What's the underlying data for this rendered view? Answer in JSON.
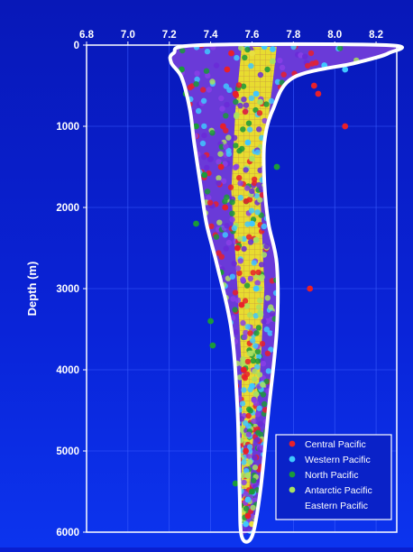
{
  "chart_data": {
    "type": "scatter",
    "title": "",
    "xlabel": "",
    "ylabel": "Depth (m)",
    "xlim": [
      6.8,
      8.3
    ],
    "ylim": [
      6000,
      0
    ],
    "x_ticks": [
      "6.8",
      "7.0",
      "7.2",
      "7.4",
      "7.6",
      "7.8",
      "8.0",
      "8.2"
    ],
    "y_ticks": [
      "0",
      "1000",
      "2000",
      "3000",
      "4000",
      "5000",
      "6000"
    ],
    "y_axis_inverted": true,
    "x_axis_position": "top",
    "legend_position": "bottom-right",
    "envelope": {
      "left_edge": [
        [
          7.35,
          0
        ],
        [
          7.22,
          100
        ],
        [
          7.21,
          220
        ],
        [
          7.26,
          400
        ],
        [
          7.3,
          800
        ],
        [
          7.32,
          1200
        ],
        [
          7.35,
          1700
        ],
        [
          7.38,
          2200
        ],
        [
          7.43,
          2700
        ],
        [
          7.5,
          3500
        ],
        [
          7.53,
          4500
        ],
        [
          7.54,
          5500
        ],
        [
          7.55,
          6050
        ]
      ],
      "right_edge": [
        [
          8.25,
          0
        ],
        [
          8.26,
          100
        ],
        [
          8.1,
          220
        ],
        [
          7.8,
          400
        ],
        [
          7.7,
          800
        ],
        [
          7.66,
          1200
        ],
        [
          7.66,
          1700
        ],
        [
          7.68,
          2200
        ],
        [
          7.72,
          2700
        ],
        [
          7.72,
          3500
        ],
        [
          7.68,
          4500
        ],
        [
          7.64,
          5500
        ],
        [
          7.6,
          6050
        ]
      ]
    },
    "series": [
      {
        "name": "Central Pacific",
        "color": "#e8202a",
        "points": [
          [
            7.9,
            500
          ],
          [
            7.92,
            600
          ],
          [
            8.05,
            1000
          ],
          [
            7.88,
            3000
          ],
          [
            7.5,
            100
          ],
          [
            7.48,
            300
          ],
          [
            7.52,
            600
          ],
          [
            7.46,
            1000
          ],
          [
            7.45,
            1500
          ],
          [
            7.47,
            2000
          ],
          [
            7.53,
            2500
          ],
          [
            7.55,
            3200
          ],
          [
            7.56,
            4000
          ],
          [
            7.57,
            5000
          ],
          [
            7.58,
            5800
          ]
        ]
      },
      {
        "name": "Western Pacific",
        "color": "#40c8ff",
        "points": [
          [
            7.95,
            250
          ],
          [
            8.05,
            300
          ],
          [
            7.7,
            50
          ],
          [
            7.66,
            20
          ],
          [
            7.62,
            600
          ],
          [
            7.58,
            1200
          ],
          [
            7.6,
            2200
          ],
          [
            7.62,
            3000
          ],
          [
            7.6,
            4200
          ],
          [
            7.58,
            5600
          ],
          [
            7.57,
            5900
          ]
        ]
      },
      {
        "name": "North Pacific",
        "color": "#1a9a3a",
        "points": [
          [
            7.72,
            1500
          ],
          [
            7.33,
            2200
          ],
          [
            7.4,
            3400
          ],
          [
            7.41,
            3700
          ],
          [
            7.26,
            300
          ],
          [
            7.28,
            600
          ],
          [
            7.33,
            1000
          ],
          [
            7.37,
            1600
          ],
          [
            7.45,
            2800
          ],
          [
            7.52,
            5400
          ],
          [
            7.6,
            5500
          ]
        ]
      },
      {
        "name": "Antarctic Pacific",
        "color": "#a8e060",
        "points": [
          [
            7.7,
            200
          ],
          [
            7.64,
            700
          ],
          [
            7.6,
            1400
          ],
          [
            7.62,
            2400
          ],
          [
            7.64,
            3300
          ],
          [
            7.62,
            4300
          ],
          [
            7.58,
            5300
          ]
        ]
      },
      {
        "name": "Eastern Pacific",
        "color": "#e8e040",
        "points": [
          [
            7.6,
            100
          ],
          [
            7.6,
            5900
          ]
        ]
      }
    ]
  }
}
